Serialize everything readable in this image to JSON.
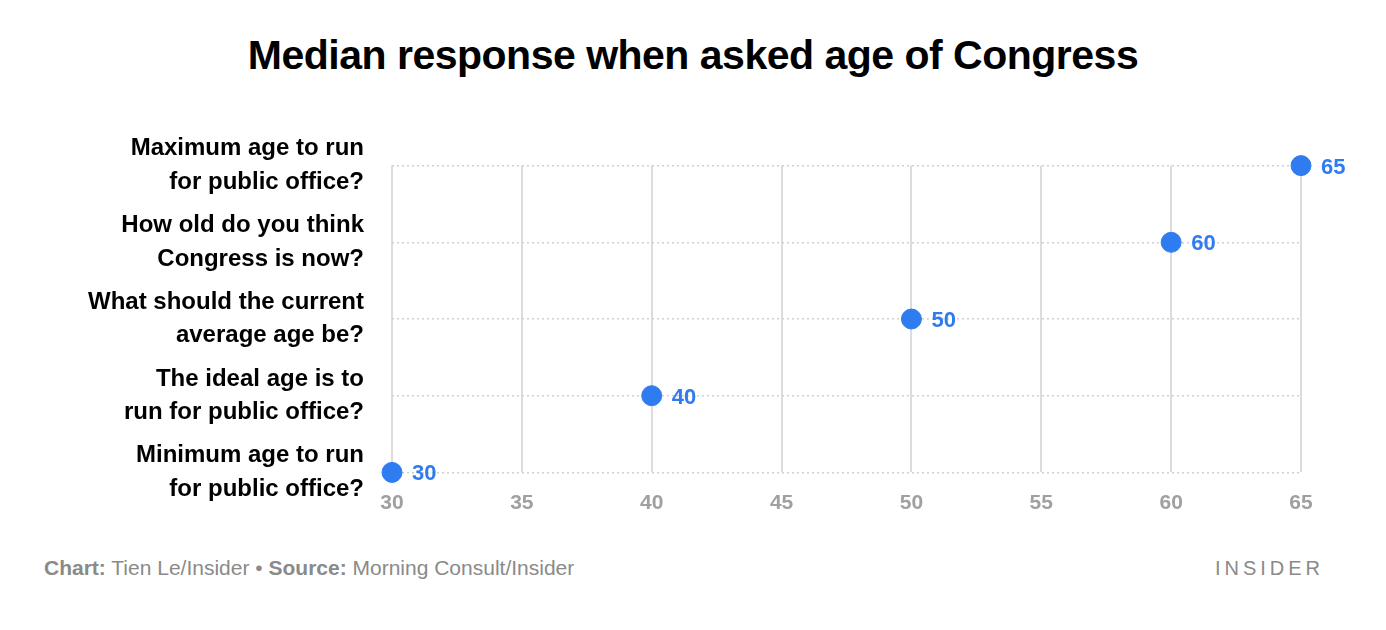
{
  "chart_data": {
    "type": "dot",
    "orientation": "horizontal",
    "title": "Median response when asked age of Congress",
    "categories": [
      [
        "Maximum age to run",
        "for public office?"
      ],
      [
        "How old do you think",
        "Congress is now?"
      ],
      [
        "What should the current",
        "average age be?"
      ],
      [
        "The ideal age is to",
        "run for public office?"
      ],
      [
        "Minimum age to run",
        "for public office?"
      ]
    ],
    "values": [
      65,
      60,
      50,
      40,
      30
    ],
    "color": "#2f7bf0",
    "xlim": [
      30,
      65
    ],
    "xticks": [
      30,
      35,
      40,
      45,
      50,
      55,
      60,
      65
    ],
    "grid": true,
    "data_labels": true,
    "credits": [
      {
        "label": "Chart:",
        "text": "Tien Le/Insider"
      },
      {
        "label": "Source:",
        "text": "Morning Consult/Insider"
      }
    ],
    "separator": "•",
    "logo": "INSIDER"
  }
}
